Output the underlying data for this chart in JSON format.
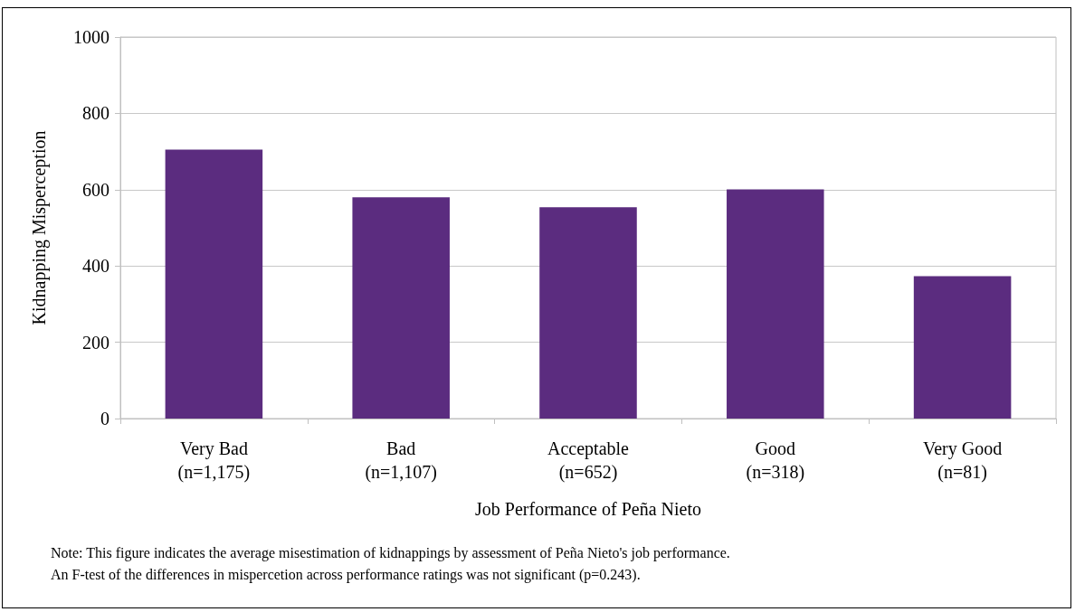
{
  "chart_data": {
    "type": "bar",
    "xlabel": "Job Performance of Peña Nieto",
    "ylabel": "Kidnapping Misperception",
    "categories": [
      "Very Bad\n(n=1,175)",
      "Bad\n(n=1,107)",
      "Acceptable\n(n=652)",
      "Good\n(n=318)",
      "Very Good\n(n=81)"
    ],
    "values": [
      705,
      580,
      554,
      601,
      373
    ],
    "color": "#5b2c7f",
    "ylim": [
      0,
      1000
    ],
    "yticks": [
      0,
      200,
      400,
      600,
      800,
      1000
    ],
    "grid": "y",
    "annotations": [
      "Note: This figure indicates the average misestimation of kidnappings by assessment of Peña Nieto's job performance.\nAn F-test of the differences in mispercetion across performance ratings was not significant (p=0.243)."
    ]
  }
}
